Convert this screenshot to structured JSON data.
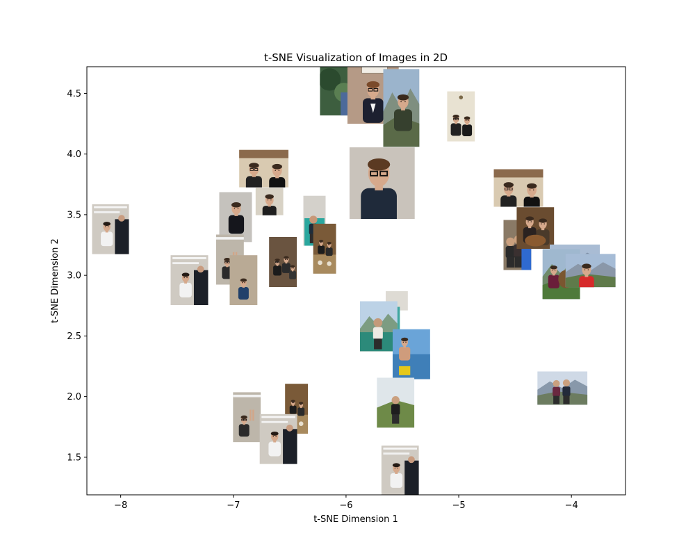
{
  "chart_data": {
    "type": "scatter",
    "title": "t-SNE Visualization of Images in 2D",
    "xlabel": "t-SNE Dimension 1",
    "ylabel": "t-SNE Dimension 2",
    "xlim": [
      -8.3,
      -3.52
    ],
    "ylim": [
      1.19,
      4.72
    ],
    "xticks": [
      -8,
      -7,
      -6,
      -5,
      -4
    ],
    "yticks": [
      1.5,
      2.0,
      2.5,
      3.0,
      3.5,
      4.0,
      4.5
    ],
    "xtick_labels": [
      "−8",
      "−7",
      "−6",
      "−5",
      "−4"
    ],
    "ytick_labels": [
      "1.5",
      "2.0",
      "2.5",
      "3.0",
      "3.5",
      "4.0",
      "4.5"
    ],
    "grid": false,
    "marker": "image-thumbnail",
    "points": [
      {
        "x": -6.09,
        "y": 4.53,
        "scene": "garden"
      },
      {
        "x": -5.76,
        "y": 4.57,
        "scene": "suit-certificate"
      },
      {
        "x": -5.51,
        "y": 4.38,
        "scene": "mountain-jacket"
      },
      {
        "x": -4.98,
        "y": 4.31,
        "scene": "two-friends-wall"
      },
      {
        "x": -5.68,
        "y": 3.76,
        "scene": "portrait-glasses"
      },
      {
        "x": -6.73,
        "y": 3.88,
        "scene": "two-friends-poster"
      },
      {
        "x": -6.68,
        "y": 3.61,
        "scene": "friend-room"
      },
      {
        "x": -6.98,
        "y": 3.48,
        "scene": "selfie-black-shirt"
      },
      {
        "x": -6.28,
        "y": 3.45,
        "scene": "mirror-hall"
      },
      {
        "x": -8.09,
        "y": 3.38,
        "scene": "selfie-suit"
      },
      {
        "x": -7.03,
        "y": 3.13,
        "scene": "peace-sign"
      },
      {
        "x": -6.91,
        "y": 2.96,
        "scene": "blue-shirt"
      },
      {
        "x": -6.56,
        "y": 3.11,
        "scene": "group-selfie"
      },
      {
        "x": -6.19,
        "y": 3.22,
        "scene": "restaurant"
      },
      {
        "x": -7.39,
        "y": 2.96,
        "scene": "selfie-suit"
      },
      {
        "x": -4.47,
        "y": 3.72,
        "scene": "two-friends-poster"
      },
      {
        "x": -4.48,
        "y": 3.25,
        "scene": "crowd"
      },
      {
        "x": -4.32,
        "y": 3.39,
        "scene": "dog-couple"
      },
      {
        "x": -3.97,
        "y": 3.12,
        "scene": "mountain-sky"
      },
      {
        "x": -4.09,
        "y": 3.01,
        "scene": "dog-mountain"
      },
      {
        "x": -3.83,
        "y": 3.04,
        "scene": "red-shirt-mountain"
      },
      {
        "x": -5.55,
        "y": 2.79,
        "scene": "portrait-neutral"
      },
      {
        "x": -5.59,
        "y": 2.62,
        "scene": "lake-woman"
      },
      {
        "x": -5.71,
        "y": 2.58,
        "scene": "lake-man"
      },
      {
        "x": -5.42,
        "y": 2.35,
        "scene": "beach-shirtless"
      },
      {
        "x": -4.08,
        "y": 2.07,
        "scene": "mountain-duo"
      },
      {
        "x": -5.56,
        "y": 1.95,
        "scene": "hiking-hill"
      },
      {
        "x": -6.88,
        "y": 1.83,
        "scene": "peace-sign"
      },
      {
        "x": -6.44,
        "y": 1.9,
        "scene": "restaurant"
      },
      {
        "x": -6.6,
        "y": 1.65,
        "scene": "selfie-suit"
      },
      {
        "x": -5.52,
        "y": 1.39,
        "scene": "selfie-suit"
      }
    ]
  }
}
